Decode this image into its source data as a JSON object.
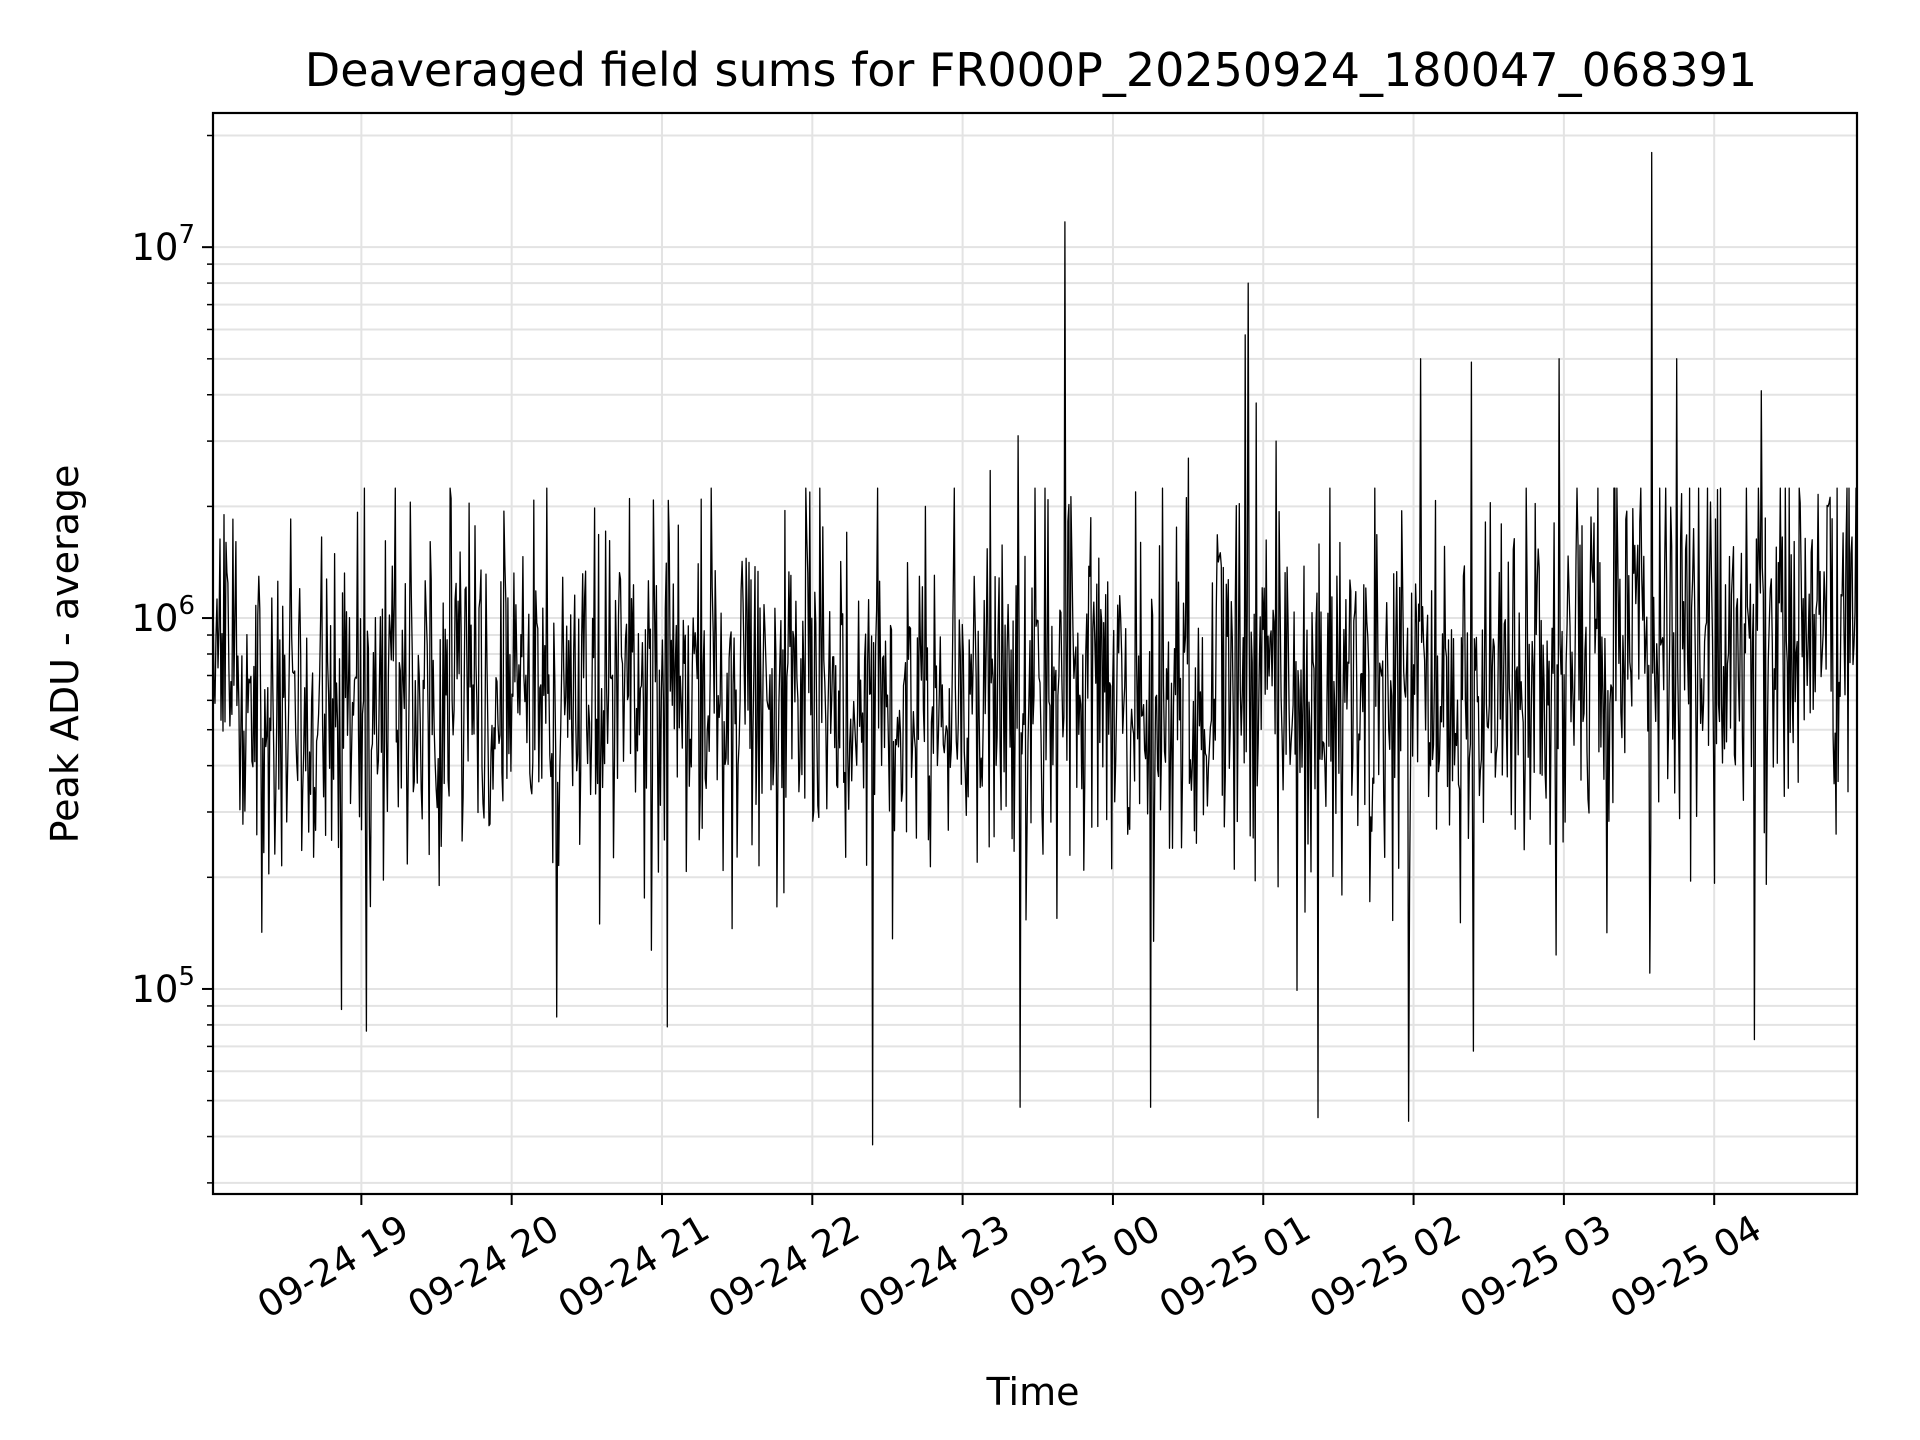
{
  "chart_data": {
    "type": "line",
    "title": "Deaveraged field sums for FR000P_20250924_180047_068391",
    "xlabel": "Time",
    "ylabel": "Peak ADU - average",
    "yscale": "log",
    "xlim": [
      "2025-09-24 18:00:47",
      "2025-09-25 04:57:00"
    ],
    "ylim": [
      28000,
      23000000
    ],
    "grid": true,
    "line_color": "#000000",
    "x_ticks": [
      {
        "label": "09-24 19",
        "time": "2025-09-24 19:00"
      },
      {
        "label": "09-24 20",
        "time": "2025-09-24 20:00"
      },
      {
        "label": "09-24 21",
        "time": "2025-09-24 21:00"
      },
      {
        "label": "09-24 22",
        "time": "2025-09-24 22:00"
      },
      {
        "label": "09-24 23",
        "time": "2025-09-24 23:00"
      },
      {
        "label": "09-25 00",
        "time": "2025-09-25 00:00"
      },
      {
        "label": "09-25 01",
        "time": "2025-09-25 01:00"
      },
      {
        "label": "09-25 02",
        "time": "2025-09-25 02:00"
      },
      {
        "label": "09-25 03",
        "time": "2025-09-25 03:00"
      },
      {
        "label": "09-25 04",
        "time": "2025-09-25 04:00"
      }
    ],
    "y_ticks": [
      {
        "base": "10",
        "exp": "5",
        "value": 100000
      },
      {
        "base": "10",
        "exp": "6",
        "value": 1000000
      },
      {
        "base": "10",
        "exp": "7",
        "value": 10000000
      }
    ],
    "peaks": [
      {
        "time": "2025-09-24 18:05",
        "value": 1900000
      },
      {
        "time": "2025-09-24 18:52",
        "value": 88000
      },
      {
        "time": "2025-09-24 19:02",
        "value": 77000
      },
      {
        "time": "2025-09-24 19:36",
        "value": 2100000
      },
      {
        "time": "2025-09-24 20:18",
        "value": 84000
      },
      {
        "time": "2025-09-24 20:47",
        "value": 2100000
      },
      {
        "time": "2025-09-24 21:02",
        "value": 79000
      },
      {
        "time": "2025-09-24 21:49",
        "value": 1950000
      },
      {
        "time": "2025-09-24 22:24",
        "value": 38000
      },
      {
        "time": "2025-09-24 22:45",
        "value": 2000000
      },
      {
        "time": "2025-09-24 23:11",
        "value": 2500000
      },
      {
        "time": "2025-09-24 23:22",
        "value": 3100000
      },
      {
        "time": "2025-09-24 23:23",
        "value": 48000
      },
      {
        "time": "2025-09-24 23:41",
        "value": 11700000
      },
      {
        "time": "2025-09-25 00:15",
        "value": 48000
      },
      {
        "time": "2025-09-25 00:30",
        "value": 2700000
      },
      {
        "time": "2025-09-25 00:53",
        "value": 5800000
      },
      {
        "time": "2025-09-25 00:54",
        "value": 8000000
      },
      {
        "time": "2025-09-25 00:57",
        "value": 3800000
      },
      {
        "time": "2025-09-25 01:05",
        "value": 3000000
      },
      {
        "time": "2025-09-25 01:22",
        "value": 45000
      },
      {
        "time": "2025-09-25 01:58",
        "value": 44000
      },
      {
        "time": "2025-09-25 02:03",
        "value": 5000000
      },
      {
        "time": "2025-09-25 02:23",
        "value": 4900000
      },
      {
        "time": "2025-09-25 02:24",
        "value": 68000
      },
      {
        "time": "2025-09-25 02:58",
        "value": 5000000
      },
      {
        "time": "2025-09-25 03:35",
        "value": 18000000
      },
      {
        "time": "2025-09-25 03:45",
        "value": 5000000
      },
      {
        "time": "2025-09-25 04:16",
        "value": 73000
      },
      {
        "time": "2025-09-25 04:19",
        "value": 4100000
      }
    ]
  }
}
